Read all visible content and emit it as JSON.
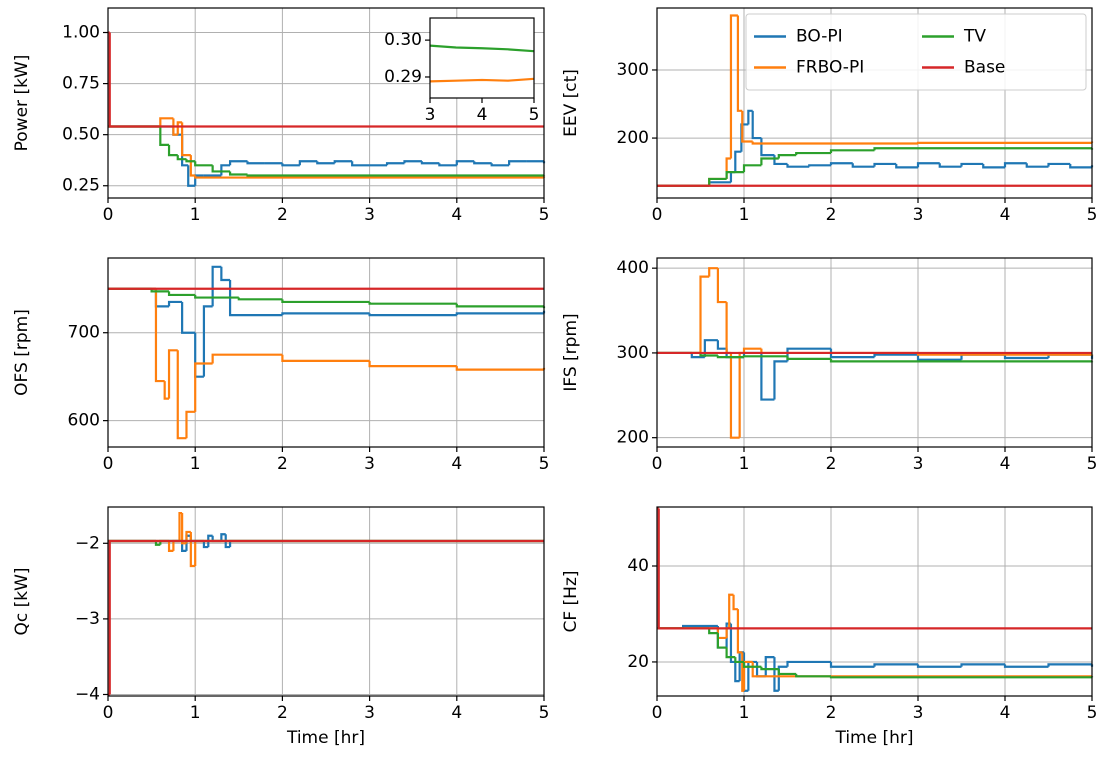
{
  "chart_data": [
    {
      "type": "line",
      "drawstyle": "steps-post",
      "grid": true,
      "ylabel": "Power [kW]",
      "xlim": [
        0,
        5
      ],
      "xticks": [
        0,
        1,
        2,
        3,
        4,
        5
      ],
      "ylim": [
        0.19,
        1.12
      ],
      "yticks": [
        0.25,
        {
          "value": 0.5,
          "label": "0.50"
        },
        0.75,
        {
          "value": 1,
          "label": "1.00"
        }
      ],
      "series": [
        {
          "color": "#1f77b4",
          "x": [
            0,
            0.3,
            0.6,
            0.75,
            0.85,
            0.92,
            1.0,
            1.1,
            1.3,
            1.4,
            1.6,
            1.8,
            2.0,
            2.2,
            2.4,
            2.6,
            2.8,
            3.0,
            3.2,
            3.4,
            3.6,
            3.8,
            4.0,
            4.2,
            4.4,
            4.6,
            4.8,
            5.0
          ],
          "values": [
            0.54,
            0.54,
            0.54,
            0.5,
            0.35,
            0.25,
            0.3,
            0.3,
            0.35,
            0.37,
            0.36,
            0.36,
            0.35,
            0.37,
            0.36,
            0.37,
            0.35,
            0.35,
            0.36,
            0.37,
            0.36,
            0.35,
            0.37,
            0.36,
            0.35,
            0.37,
            0.37,
            0.36
          ]
        },
        {
          "color": "#ff7f0e",
          "x": [
            0,
            0.6,
            0.75,
            0.8,
            0.85,
            0.95,
            1.0,
            5
          ],
          "values": [
            0.54,
            0.58,
            0.5,
            0.56,
            0.4,
            0.3,
            0.29,
            0.295
          ]
        },
        {
          "color": "#2ca02c",
          "x": [
            0,
            0.6,
            0.7,
            0.8,
            0.9,
            1.0,
            1.2,
            1.4,
            1.6,
            5
          ],
          "values": [
            0.54,
            0.45,
            0.4,
            0.38,
            0.37,
            0.35,
            0.32,
            0.305,
            0.3,
            0.298
          ]
        },
        {
          "color": "#d62728",
          "x": [
            0,
            0.02,
            5
          ],
          "values": [
            1.0,
            0.54,
            0.54
          ]
        }
      ],
      "inset": {
        "type": "line",
        "xlim": [
          3,
          5
        ],
        "xticks": [
          3,
          4,
          5
        ],
        "ylim": [
          0.2843,
          0.306
        ],
        "yticks": [
          {
            "value": 0.29,
            "label": "0.29"
          },
          {
            "value": 0.3,
            "label": "0.30"
          }
        ],
        "series": [
          {
            "color": "#2ca02c",
            "x": [
              3,
              3.5,
              4,
              4.5,
              5
            ],
            "values": [
              0.2985,
              0.298,
              0.2978,
              0.2975,
              0.297
            ]
          },
          {
            "color": "#ff7f0e",
            "x": [
              3,
              3.5,
              4,
              4.5,
              5
            ],
            "values": [
              0.2888,
              0.289,
              0.2892,
              0.289,
              0.2895
            ]
          }
        ]
      }
    },
    {
      "type": "line",
      "drawstyle": "steps-post",
      "grid": true,
      "ylabel": "EEV [ct]",
      "legend": "upper right",
      "legend_ncol": 2,
      "xlim": [
        0,
        5
      ],
      "xticks": [
        0,
        1,
        2,
        3,
        4,
        5
      ],
      "ylim": [
        112,
        391
      ],
      "yticks": [
        200,
        300
      ],
      "series": [
        {
          "name": "BO-PI",
          "color": "#1f77b4",
          "x": [
            0,
            0.6,
            0.85,
            0.9,
            0.97,
            1.05,
            1.1,
            1.2,
            1.35,
            1.5,
            1.75,
            2.0,
            2.25,
            2.5,
            2.75,
            3.0,
            3.25,
            3.5,
            3.75,
            4.0,
            4.25,
            4.5,
            4.75,
            5.0
          ],
          "values": [
            130,
            135,
            150,
            180,
            220,
            240,
            200,
            175,
            162,
            158,
            160,
            163,
            158,
            162,
            157,
            163,
            158,
            162,
            157,
            163,
            158,
            162,
            157,
            160
          ]
        },
        {
          "name": "FRBO-PI",
          "color": "#ff7f0e",
          "x": [
            0,
            0.6,
            0.8,
            0.85,
            0.93,
            0.98,
            1.1,
            3,
            5
          ],
          "values": [
            130,
            140,
            170,
            380,
            240,
            195,
            192,
            193,
            195
          ]
        },
        {
          "name": "TV",
          "color": "#2ca02c",
          "x": [
            0,
            0.6,
            0.8,
            1.0,
            1.2,
            1.4,
            1.6,
            2.0,
            2.5,
            3.0,
            4.0,
            5.0
          ],
          "values": [
            130,
            140,
            150,
            160,
            170,
            175,
            178,
            182,
            185,
            185,
            185,
            183
          ]
        },
        {
          "name": "Base",
          "color": "#d62728",
          "x": [
            0,
            5
          ],
          "values": [
            130,
            130
          ]
        }
      ]
    },
    {
      "type": "line",
      "drawstyle": "steps-post",
      "grid": true,
      "ylabel": "OFS [rpm]",
      "xlim": [
        0,
        5
      ],
      "xticks": [
        0,
        1,
        2,
        3,
        4,
        5
      ],
      "ylim": [
        570,
        785
      ],
      "yticks": [
        600,
        700
      ],
      "series": [
        {
          "color": "#1f77b4",
          "x": [
            0,
            0.55,
            0.7,
            0.85,
            1.0,
            1.1,
            1.2,
            1.3,
            1.4,
            2,
            3,
            4,
            5
          ],
          "values": [
            750,
            730,
            735,
            700,
            650,
            730,
            775,
            760,
            720,
            722,
            720,
            722,
            725
          ]
        },
        {
          "color": "#ff7f0e",
          "x": [
            0,
            0.55,
            0.65,
            0.7,
            0.8,
            0.9,
            1.0,
            1.2,
            2,
            3,
            4,
            5
          ],
          "values": [
            750,
            645,
            625,
            680,
            580,
            610,
            665,
            675,
            668,
            662,
            658,
            660
          ]
        },
        {
          "color": "#2ca02c",
          "x": [
            0,
            0.5,
            0.7,
            1.0,
            1.5,
            2,
            3,
            4,
            5
          ],
          "values": [
            750,
            747,
            743,
            740,
            738,
            735,
            733,
            730,
            728
          ]
        },
        {
          "color": "#d62728",
          "x": [
            0,
            5
          ],
          "values": [
            750,
            750
          ]
        }
      ]
    },
    {
      "type": "line",
      "drawstyle": "steps-post",
      "grid": true,
      "ylabel": "IFS [rpm]",
      "xlim": [
        0,
        5
      ],
      "xticks": [
        0,
        1,
        2,
        3,
        4,
        5
      ],
      "ylim": [
        189,
        412
      ],
      "yticks": [
        200,
        300,
        400
      ],
      "series": [
        {
          "color": "#1f77b4",
          "x": [
            0,
            0.4,
            0.55,
            0.7,
            0.8,
            1.0,
            1.2,
            1.35,
            1.5,
            2,
            2.5,
            3,
            3.5,
            4,
            4.5,
            5
          ],
          "values": [
            300,
            295,
            315,
            305,
            295,
            300,
            245,
            290,
            305,
            295,
            298,
            292,
            298,
            294,
            298,
            293
          ]
        },
        {
          "color": "#ff7f0e",
          "x": [
            0,
            0.5,
            0.6,
            0.7,
            0.8,
            0.85,
            0.95,
            1.0,
            1.2,
            3,
            5
          ],
          "values": [
            300,
            390,
            400,
            360,
            300,
            200,
            300,
            305,
            300,
            298,
            297
          ]
        },
        {
          "color": "#2ca02c",
          "x": [
            0,
            0.5,
            0.7,
            1.0,
            1.5,
            2,
            3,
            4,
            5
          ],
          "values": [
            300,
            297,
            295,
            296,
            293,
            290,
            290,
            290,
            289
          ]
        },
        {
          "color": "#d62728",
          "x": [
            0,
            5
          ],
          "values": [
            300,
            300
          ]
        }
      ]
    },
    {
      "type": "line",
      "drawstyle": "steps-post",
      "grid": true,
      "ylabel": "Qc [kW]",
      "xlabel": "Time [hr]",
      "xlim": [
        0,
        5
      ],
      "xticks": [
        0,
        1,
        2,
        3,
        4,
        5
      ],
      "ylim": [
        -4.02,
        -1.52
      ],
      "yticks": [
        {
          "value": -4,
          "label": "−4"
        },
        {
          "value": -3,
          "label": "−3"
        },
        {
          "value": -2,
          "label": "−2"
        }
      ],
      "series": [
        {
          "color": "#1f77b4",
          "x": [
            0,
            0.8,
            0.85,
            0.9,
            0.95,
            1.1,
            1.15,
            1.2,
            1.3,
            1.35,
            1.4,
            5
          ],
          "values": [
            -1.97,
            -1.97,
            -2.1,
            -1.9,
            -1.97,
            -2.05,
            -1.9,
            -1.97,
            -1.88,
            -2.05,
            -1.97,
            -1.97
          ]
        },
        {
          "color": "#ff7f0e",
          "x": [
            0,
            0.7,
            0.75,
            0.82,
            0.85,
            0.9,
            0.95,
            1.0,
            5
          ],
          "values": [
            -1.97,
            -2.1,
            -1.97,
            -1.6,
            -2.0,
            -1.85,
            -2.3,
            -1.97,
            -1.97
          ]
        },
        {
          "color": "#2ca02c",
          "x": [
            0,
            0.55,
            0.6,
            5
          ],
          "values": [
            -1.97,
            -2.02,
            -1.97,
            -1.97
          ]
        },
        {
          "color": "#d62728",
          "x": [
            0,
            0.02,
            5
          ],
          "values": [
            -4.0,
            -1.97,
            -1.97
          ]
        }
      ]
    },
    {
      "type": "line",
      "drawstyle": "steps-post",
      "grid": true,
      "ylabel": "CF [Hz]",
      "xlabel": "Time [hr]",
      "xlim": [
        0,
        5
      ],
      "xticks": [
        0,
        1,
        2,
        3,
        4,
        5
      ],
      "ylim": [
        12.9,
        52.3
      ],
      "yticks": [
        20,
        40
      ],
      "series": [
        {
          "color": "#1f77b4",
          "x": [
            0,
            0.3,
            0.7,
            0.8,
            0.85,
            0.9,
            0.95,
            1.0,
            1.05,
            1.15,
            1.25,
            1.35,
            1.4,
            1.5,
            2,
            2.5,
            3,
            3.5,
            4,
            4.5,
            5
          ],
          "values": [
            27,
            27.5,
            23,
            28,
            20,
            16,
            22,
            14,
            20,
            17,
            21,
            14,
            19,
            20,
            19,
            19.5,
            19,
            19.5,
            19,
            19.5,
            19
          ]
        },
        {
          "color": "#ff7f0e",
          "x": [
            0,
            0.7,
            0.8,
            0.83,
            0.88,
            0.93,
            0.98,
            1.0,
            1.1,
            1.5,
            5
          ],
          "values": [
            27,
            25,
            27,
            34,
            31,
            22,
            14,
            20,
            17,
            17,
            17
          ]
        },
        {
          "color": "#2ca02c",
          "x": [
            0,
            0.6,
            0.7,
            0.8,
            0.9,
            1.0,
            1.2,
            1.4,
            1.6,
            2,
            5
          ],
          "values": [
            27,
            26,
            23,
            21,
            20,
            19,
            18.5,
            17.5,
            17,
            16.8,
            17
          ]
        },
        {
          "color": "#d62728",
          "x": [
            0,
            0.02,
            5
          ],
          "values": [
            52,
            27,
            27
          ]
        }
      ]
    }
  ]
}
